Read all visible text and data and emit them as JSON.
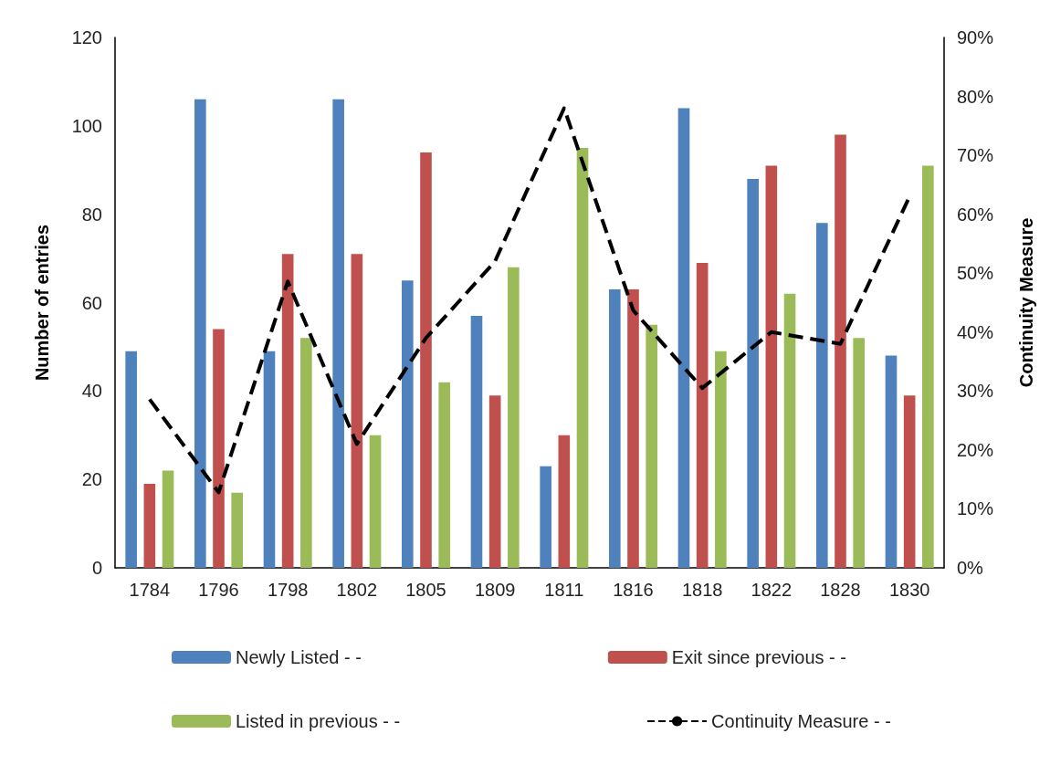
{
  "chart_data": {
    "type": "bar",
    "ylabel": "Number of entries",
    "y2label": "Continuity Measure",
    "categories": [
      "1784",
      "1796",
      "1798",
      "1802",
      "1805",
      "1809",
      "1811",
      "1816",
      "1818",
      "1822",
      "1828",
      "1830"
    ],
    "series": [
      {
        "name": "Newly Listed - -",
        "color": "#4f81bd",
        "values": [
          49,
          106,
          49,
          106,
          65,
          57,
          23,
          63,
          104,
          88,
          78,
          48
        ]
      },
      {
        "name": "Exit since previous - -",
        "color": "#c0504d",
        "values": [
          19,
          54,
          71,
          71,
          94,
          39,
          30,
          63,
          69,
          91,
          98,
          39
        ]
      },
      {
        "name": "Listed in previous - -",
        "color": "#9bbb59",
        "values": [
          22,
          17,
          52,
          30,
          42,
          68,
          95,
          55,
          49,
          62,
          52,
          91
        ]
      },
      {
        "name": "Continuity Measure - -",
        "type": "line",
        "axis": "y2",
        "color": "#000000",
        "line_style": "dashed",
        "marker": "none",
        "values": [
          28.6,
          12.8,
          48.6,
          21,
          39,
          52,
          78,
          43.7,
          30.5,
          40,
          38,
          63
        ]
      }
    ],
    "ylim": [
      0,
      120
    ],
    "yticks": [
      0,
      20,
      40,
      60,
      80,
      100,
      120
    ],
    "y2lim": [
      0,
      90
    ],
    "y2ticks": [
      {
        "value": 0,
        "label": "0%"
      },
      {
        "value": 10,
        "label": "10%"
      },
      {
        "value": 20,
        "label": "20%"
      },
      {
        "value": 30,
        "label": "30%"
      },
      {
        "value": 40,
        "label": "40%"
      },
      {
        "value": 50,
        "label": "50%"
      },
      {
        "value": 60,
        "label": "60%"
      },
      {
        "value": 70,
        "label": "70%"
      },
      {
        "value": 80,
        "label": "80%"
      },
      {
        "value": 90,
        "label": "90%"
      }
    ],
    "grid": false,
    "legend": "bottom"
  }
}
